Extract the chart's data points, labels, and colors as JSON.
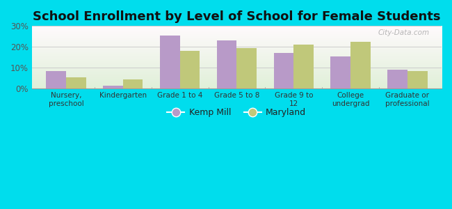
{
  "title": "School Enrollment by Level of School for Female Students",
  "categories": [
    "Nursery,\npreschool",
    "Kindergarten",
    "Grade 1 to 4",
    "Grade 5 to 8",
    "Grade 9 to\n12",
    "College\nundergrad",
    "Graduate or\nprofessional"
  ],
  "kemp_mill": [
    8.5,
    1.5,
    25.5,
    23.0,
    17.0,
    15.5,
    9.0
  ],
  "maryland": [
    5.5,
    4.5,
    18.0,
    19.5,
    21.0,
    22.5,
    8.5
  ],
  "kemp_mill_color": "#b89ac8",
  "maryland_color": "#c0c87a",
  "background_outer": "#00dded",
  "background_inner_gradient_top": "#f5f5f0",
  "background_inner_gradient_bottom": "#d8ecd0",
  "ylim": [
    0,
    30
  ],
  "yticks": [
    0,
    10,
    20,
    30
  ],
  "ytick_labels": [
    "0%",
    "10%",
    "20%",
    "30%"
  ],
  "legend_kemp": "Kemp Mill",
  "legend_maryland": "Maryland",
  "title_fontsize": 13,
  "bar_width": 0.35,
  "watermark": "City-Data.com"
}
